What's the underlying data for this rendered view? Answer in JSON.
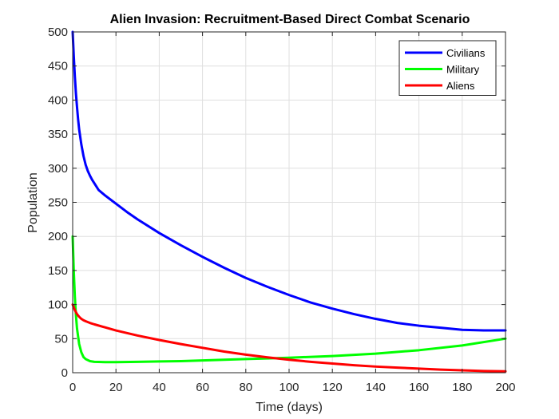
{
  "chart_data": {
    "type": "line",
    "title": "Alien Invasion: Recruitment-Based Direct Combat Scenario",
    "xlabel": "Time (days)",
    "ylabel": "Population",
    "xlim": [
      0,
      200
    ],
    "ylim": [
      0,
      500
    ],
    "xticks": [
      0,
      20,
      40,
      60,
      80,
      100,
      120,
      140,
      160,
      180,
      200
    ],
    "yticks": [
      0,
      50,
      100,
      150,
      200,
      250,
      300,
      350,
      400,
      450,
      500
    ],
    "grid": true,
    "legend_position": "top-right",
    "series": [
      {
        "name": "Civilians",
        "color": "#0000ff",
        "x": [
          0,
          0.5,
          1,
          1.5,
          2,
          2.5,
          3,
          4,
          5,
          6,
          7,
          8,
          9,
          10,
          12,
          15,
          20,
          25,
          30,
          40,
          50,
          60,
          70,
          80,
          90,
          100,
          110,
          120,
          130,
          140,
          150,
          160,
          170,
          180,
          190,
          200
        ],
        "y": [
          500,
          465,
          435,
          410,
          390,
          372,
          357,
          335,
          318,
          305,
          296,
          289,
          283,
          278,
          268,
          260,
          248,
          236,
          225,
          205,
          187,
          170,
          154,
          139,
          126,
          114,
          103,
          94,
          86,
          79,
          73,
          69,
          66,
          63,
          62,
          62
        ]
      },
      {
        "name": "Military",
        "color": "#00ff00",
        "x": [
          0,
          0.5,
          1,
          1.5,
          2,
          3,
          4,
          5,
          6,
          8,
          10,
          15,
          20,
          30,
          40,
          50,
          60,
          70,
          80,
          90,
          100,
          120,
          140,
          160,
          180,
          200
        ],
        "y": [
          200,
          150,
          112,
          85,
          65,
          42,
          30,
          23,
          20,
          17,
          16,
          15.5,
          15.5,
          16,
          16.5,
          17,
          18,
          19,
          20,
          21,
          22,
          24.5,
          28,
          33,
          40,
          50
        ]
      },
      {
        "name": "Aliens",
        "color": "#ff0000",
        "x": [
          0,
          0.5,
          1,
          2,
          3,
          4,
          5,
          6,
          8,
          10,
          15,
          20,
          30,
          40,
          50,
          60,
          70,
          80,
          90,
          100,
          110,
          120,
          130,
          140,
          150,
          160,
          170,
          180,
          190,
          200
        ],
        "y": [
          100,
          96,
          92,
          86,
          82,
          79,
          77,
          75.5,
          73,
          71,
          66.5,
          62,
          54.5,
          48,
          42,
          36.5,
          31,
          26.5,
          22.5,
          19,
          16,
          13.5,
          11,
          9,
          7.5,
          6,
          4.5,
          3.5,
          2.5,
          2
        ]
      }
    ]
  }
}
